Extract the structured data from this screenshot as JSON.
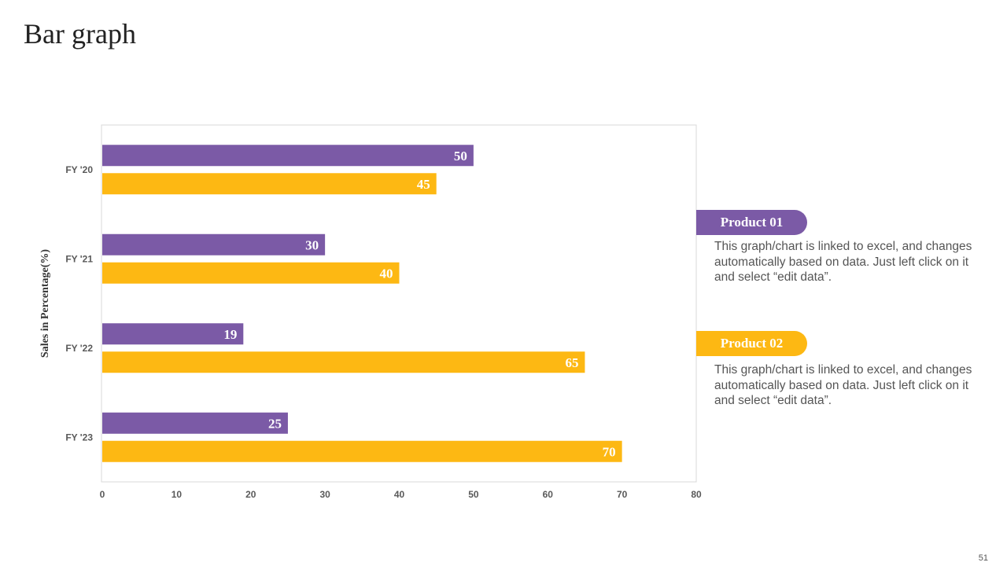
{
  "title": "Bar graph",
  "page_number": "51",
  "chart_data": {
    "type": "bar",
    "orientation": "horizontal",
    "categories": [
      "FY '20",
      "FY '21",
      "FY '22",
      "FY '23"
    ],
    "series": [
      {
        "name": "Product 01",
        "values": [
          50,
          30,
          19,
          25
        ],
        "color": "#7b5aa6"
      },
      {
        "name": "Product 02",
        "values": [
          45,
          40,
          65,
          70
        ],
        "color": "#fdb813"
      }
    ],
    "xlim": [
      0,
      80
    ],
    "xticks": [
      0,
      10,
      20,
      30,
      40,
      50,
      60,
      70,
      80
    ],
    "ylabel": "Sales in Percentage(%)",
    "xlabel": "",
    "grid": false
  },
  "legend": [
    {
      "label": "Product 01",
      "color": "#7b5aa6",
      "description": "This graph/chart is linked to excel, and changes automatically based on data. Just left click on it and select “edit data”."
    },
    {
      "label": "Product 02",
      "color": "#fdb813",
      "description": "This graph/chart is linked to excel, and changes automatically based on data. Just left click on it and select “edit data”."
    }
  ]
}
